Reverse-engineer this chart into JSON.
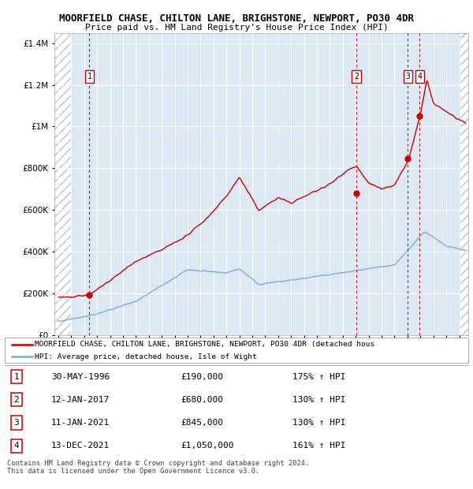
{
  "title": "MOORFIELD CHASE, CHILTON LANE, BRIGHSTONE, NEWPORT, PO30 4DR",
  "subtitle": "Price paid vs. HM Land Registry's House Price Index (HPI)",
  "hpi_color": "#7aadd4",
  "price_color": "#cc0000",
  "background_color": "#dce9f5",
  "hatch_color": "#b8c4d0",
  "legend_line1": "MOORFIELD CHASE, CHILTON LANE, BRIGHSTONE, NEWPORT, PO30 4DR (detached hous",
  "legend_line2": "HPI: Average price, detached house, Isle of Wight",
  "footer": "Contains HM Land Registry data © Crown copyright and database right 2024.\nThis data is licensed under the Open Government Licence v3.0.",
  "sales": [
    {
      "num": 1,
      "date": "30-MAY-1996",
      "price": 190000,
      "hpi_pct": "175% ↑ HPI",
      "year": 1996.41
    },
    {
      "num": 2,
      "date": "12-JAN-2017",
      "price": 680000,
      "hpi_pct": "130% ↑ HPI",
      "year": 2017.03
    },
    {
      "num": 3,
      "date": "11-JAN-2021",
      "price": 845000,
      "hpi_pct": "130% ↑ HPI",
      "year": 2021.03
    },
    {
      "num": 4,
      "date": "13-DEC-2021",
      "price": 1050000,
      "hpi_pct": "161% ↑ HPI",
      "year": 2021.95
    }
  ],
  "ylim": [
    0,
    1450000
  ],
  "xlim_start": 1993.7,
  "xlim_end": 2025.7,
  "yticks": [
    0,
    200000,
    400000,
    600000,
    800000,
    1000000,
    1200000,
    1400000
  ],
  "ytick_labels": [
    "£0",
    "£200K",
    "£400K",
    "£600K",
    "£800K",
    "£1M",
    "£1.2M",
    "£1.4M"
  ]
}
